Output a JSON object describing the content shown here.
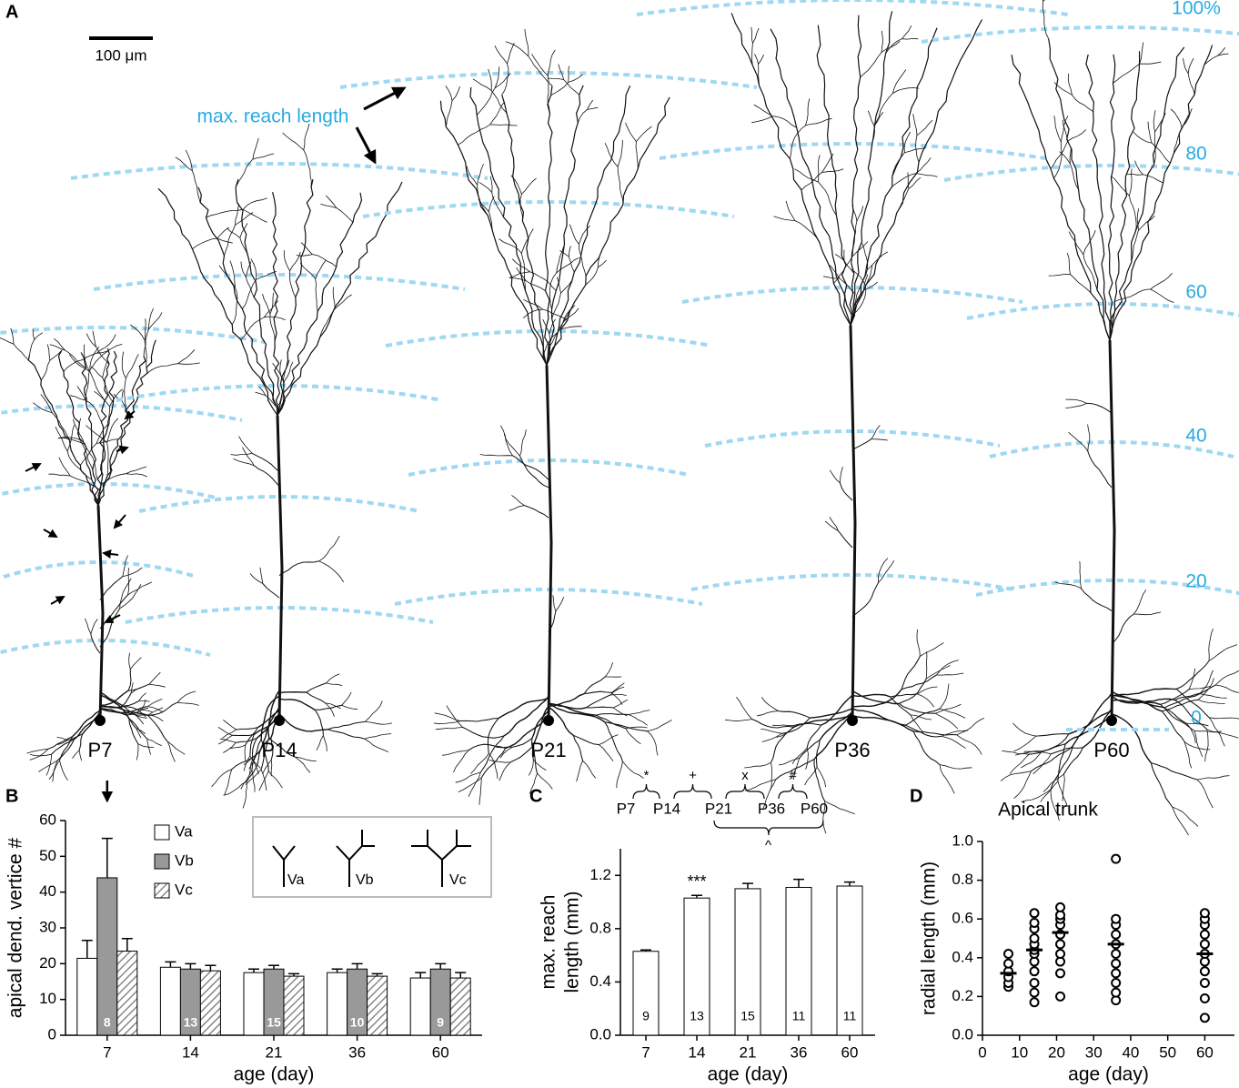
{
  "panel_a": {
    "label": "A",
    "scale_bar": "100 μm",
    "annotation": "max. reach length",
    "neurons": [
      "P7",
      "P14",
      "P21",
      "P36",
      "P60"
    ],
    "percent_labels": [
      "100%",
      "80",
      "60",
      "40",
      "20",
      "0"
    ]
  },
  "chart_data": [
    {
      "type": "bar",
      "panel_label": "B",
      "categories": [
        7,
        14,
        21,
        36,
        60
      ],
      "series": [
        {
          "name": "Va",
          "color": "#ffffff",
          "values": [
            21.5,
            19,
            17.5,
            17.5,
            16
          ],
          "errors": [
            5,
            1.5,
            1,
            1,
            1.5
          ]
        },
        {
          "name": "Vb",
          "color": "#999999",
          "values": [
            44,
            18.5,
            18.5,
            18.5,
            18.5
          ],
          "errors": [
            11,
            1.5,
            1,
            1.5,
            1.5
          ]
        },
        {
          "name": "Vc",
          "color": "#888888",
          "pattern": "hatch",
          "values": [
            23.5,
            18,
            16.5,
            16.5,
            16
          ],
          "errors": [
            3.5,
            1.5,
            0.7,
            0.7,
            1.5
          ]
        }
      ],
      "n_labels": [
        "8",
        "13",
        "15",
        "10",
        "9"
      ],
      "ylim": [
        0,
        60
      ],
      "yticks": [
        0,
        10,
        20,
        30,
        40,
        50,
        60
      ],
      "ylabel": "apical dend. vertice #",
      "xlabel": "age (day)"
    },
    {
      "type": "bar",
      "panel_label": "C",
      "categories": [
        7,
        14,
        21,
        36,
        60
      ],
      "values": [
        0.63,
        1.03,
        1.1,
        1.11,
        1.12
      ],
      "errors": [
        0.01,
        0.02,
        0.04,
        0.06,
        0.03
      ],
      "color": "#ffffff",
      "n_labels": [
        "9",
        "13",
        "15",
        "11",
        "11"
      ],
      "significance_label": "***",
      "comparisons": {
        "ages": [
          "P7",
          "P14",
          "P21",
          "P36",
          "P60"
        ],
        "symbols": [
          "*",
          "+",
          "x",
          "#"
        ],
        "bottom_symbol": "^"
      },
      "ylim": [
        0,
        1.4
      ],
      "yticks": [
        {
          "value": 0,
          "label": "0.0"
        },
        0.4,
        0.8,
        1.2
      ],
      "ylabel": [
        "max. reach",
        "length (mm)"
      ],
      "xlabel": "age (day)"
    },
    {
      "type": "scatter",
      "panel_label": "D",
      "title": "Apical trunk",
      "x": [
        7,
        7,
        7,
        7,
        7,
        7,
        14,
        14,
        14,
        14,
        14,
        14,
        14,
        14,
        14,
        14,
        14,
        14,
        21,
        21,
        21,
        21,
        21,
        21,
        21,
        21,
        21,
        21,
        36,
        36,
        36,
        36,
        36,
        36,
        36,
        36,
        36,
        36,
        36,
        60,
        60,
        60,
        60,
        60,
        60,
        60,
        60,
        60,
        60,
        60
      ],
      "y": [
        0.25,
        0.27,
        0.3,
        0.33,
        0.37,
        0.42,
        0.17,
        0.22,
        0.27,
        0.33,
        0.38,
        0.42,
        0.44,
        0.47,
        0.5,
        0.55,
        0.58,
        0.63,
        0.2,
        0.32,
        0.38,
        0.42,
        0.47,
        0.52,
        0.57,
        0.6,
        0.62,
        0.66,
        0.18,
        0.22,
        0.27,
        0.32,
        0.37,
        0.42,
        0.47,
        0.52,
        0.57,
        0.6,
        0.91,
        0.09,
        0.19,
        0.27,
        0.33,
        0.38,
        0.42,
        0.47,
        0.52,
        0.57,
        0.6,
        0.63
      ],
      "means": {
        "x": [
          7,
          14,
          21,
          36,
          60
        ],
        "y": [
          0.32,
          0.44,
          0.53,
          0.47,
          0.42
        ]
      },
      "xlim": [
        0,
        68
      ],
      "xticks": [
        0,
        10,
        20,
        30,
        40,
        50,
        60
      ],
      "ylim": [
        0,
        1
      ],
      "yticks": [
        {
          "value": 0,
          "label": "0.0"
        },
        0.2,
        0.4,
        0.6,
        0.8,
        {
          "value": 1,
          "label": "1.0"
        }
      ],
      "ylabel": "radial length (mm)",
      "xlabel": "age (day)"
    }
  ]
}
